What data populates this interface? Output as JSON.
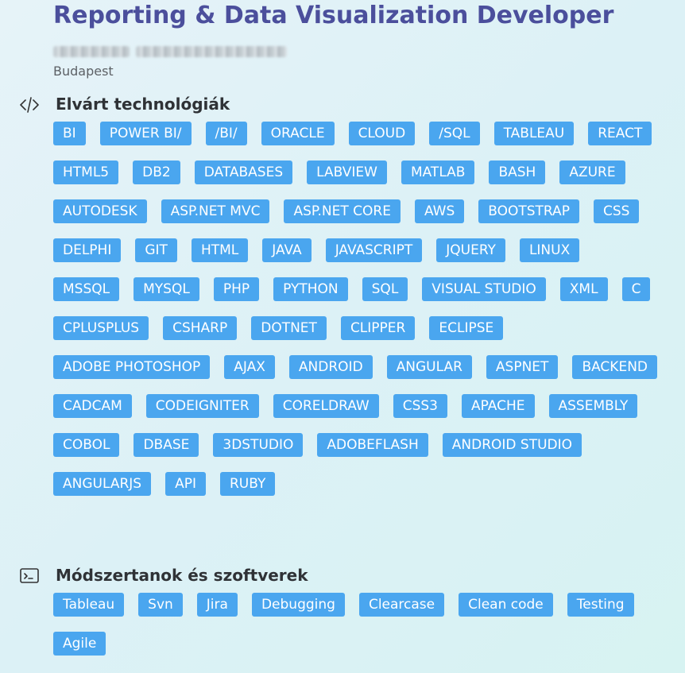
{
  "job": {
    "title": "Reporting & Data Visualization Developer",
    "location": "Budapest"
  },
  "sections": [
    {
      "title": "Elvárt technológiák",
      "icon": "code-icon",
      "tags": [
        "BI",
        "POWER BI/",
        "/BI/",
        "ORACLE",
        "CLOUD",
        "/SQL",
        "TABLEAU",
        "REACT",
        "HTML5",
        "DB2",
        "DATABASES",
        "LABVIEW",
        "MATLAB",
        "BASH",
        "AZURE",
        "AUTODESK",
        "ASP.NET MVC",
        "ASP.NET CORE",
        "AWS",
        "BOOTSTRAP",
        "CSS",
        "DELPHI",
        "GIT",
        "HTML",
        "JAVA",
        "JAVASCRIPT",
        "JQUERY",
        "LINUX",
        "MSSQL",
        "MYSQL",
        "PHP",
        "PYTHON",
        "SQL",
        "VISUAL STUDIO",
        "XML",
        "C",
        "CPLUSPLUS",
        "CSHARP",
        "DOTNET",
        "CLIPPER",
        "ECLIPSE",
        "ADOBE PHOTOSHOP",
        "AJAX",
        "ANDROID",
        "ANGULAR",
        "ASPNET",
        "BACKEND",
        "CADCAM",
        "CODEIGNITER",
        "CORELDRAW",
        "CSS3",
        "APACHE",
        "ASSEMBLY",
        "COBOL",
        "DBASE",
        "3DSTUDIO",
        "ADOBEFLASH",
        "ANDROID STUDIO",
        "ANGULARJS",
        "API",
        "RUBY"
      ]
    },
    {
      "title": "Módszertanok és szoftverek",
      "icon": "terminal-icon",
      "tags": [
        "Tableau",
        "Svn",
        "Jira",
        "Debugging",
        "Clearcase",
        "Clean code",
        "Testing",
        "Agile"
      ]
    }
  ],
  "colors": {
    "title": "#4b4f9c",
    "tag_bg": "#4aa6ef",
    "tag_text": "#ffffff"
  }
}
